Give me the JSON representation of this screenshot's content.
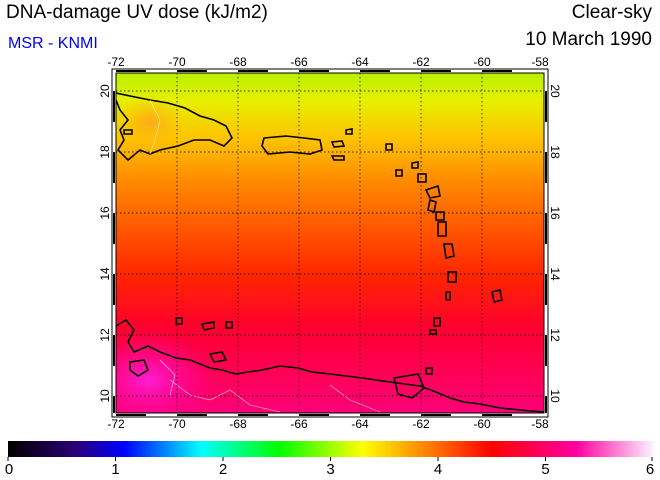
{
  "header": {
    "title": "DNA-damage UV dose (kJ/m2)",
    "subtitle": "MSR - KNMI",
    "condition": "Clear-sky",
    "date": "10 March 1990"
  },
  "map": {
    "region": "Caribbean",
    "lon_range": [
      -72,
      -58
    ],
    "lat_range": [
      9.5,
      20.5
    ],
    "lon_ticks": [
      "-72",
      "-70",
      "-68",
      "-66",
      "-64",
      "-62",
      "-60",
      "-58"
    ],
    "lat_ticks": [
      "10",
      "12",
      "14",
      "16",
      "18",
      "20"
    ],
    "grid": true,
    "field_gradient": [
      {
        "lat": 20.5,
        "value": 3.1
      },
      {
        "lat": 19.0,
        "value": 3.6
      },
      {
        "lat": 17.0,
        "value": 4.0
      },
      {
        "lat": 15.0,
        "value": 4.3
      },
      {
        "lat": 13.0,
        "value": 4.6
      },
      {
        "lat": 11.0,
        "value": 4.9
      },
      {
        "lat": 9.5,
        "value": 5.1
      }
    ]
  },
  "colorbar": {
    "min": 0,
    "max": 6,
    "labels": [
      "0",
      "1",
      "2",
      "3",
      "4",
      "5",
      "6"
    ],
    "colors": [
      "#000000",
      "#2b0070",
      "#0000ff",
      "#00ffff",
      "#00ff00",
      "#ffff00",
      "#ff8000",
      "#ff0000",
      "#ff00a0",
      "#ff80ff",
      "#ffffff"
    ]
  }
}
